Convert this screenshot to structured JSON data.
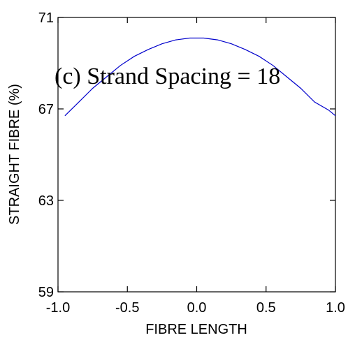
{
  "chart_data": {
    "type": "line",
    "xlabel": "FIBRE LENGTH",
    "ylabel": "STRAIGHT FIBRE (%)",
    "xlim": [
      -1.0,
      1.0
    ],
    "ylim": [
      59,
      71
    ],
    "x_ticks": [
      -1.0,
      -0.5,
      0.0,
      0.5,
      1.0
    ],
    "x_tick_labels": [
      "-1.0",
      "-0.5",
      "0.0",
      "0.5",
      "1.0"
    ],
    "y_ticks": [
      59,
      63,
      67,
      71
    ],
    "y_tick_labels": [
      "59",
      "63",
      "67",
      "71"
    ],
    "annotation": "(c) Strand Spacing = 18",
    "grid": false,
    "series": [
      {
        "color": "#0000cc",
        "x": [
          -0.95,
          -0.85,
          -0.75,
          -0.65,
          -0.55,
          -0.45,
          -0.35,
          -0.25,
          -0.15,
          -0.05,
          0.05,
          0.15,
          0.25,
          0.35,
          0.45,
          0.55,
          0.65,
          0.75,
          0.85,
          0.95,
          1.0
        ],
        "y": [
          66.7,
          67.3,
          67.9,
          68.4,
          68.9,
          69.3,
          69.6,
          69.85,
          70.02,
          70.1,
          70.1,
          70.02,
          69.85,
          69.6,
          69.3,
          68.9,
          68.4,
          67.9,
          67.3,
          66.95,
          66.7
        ]
      }
    ]
  }
}
